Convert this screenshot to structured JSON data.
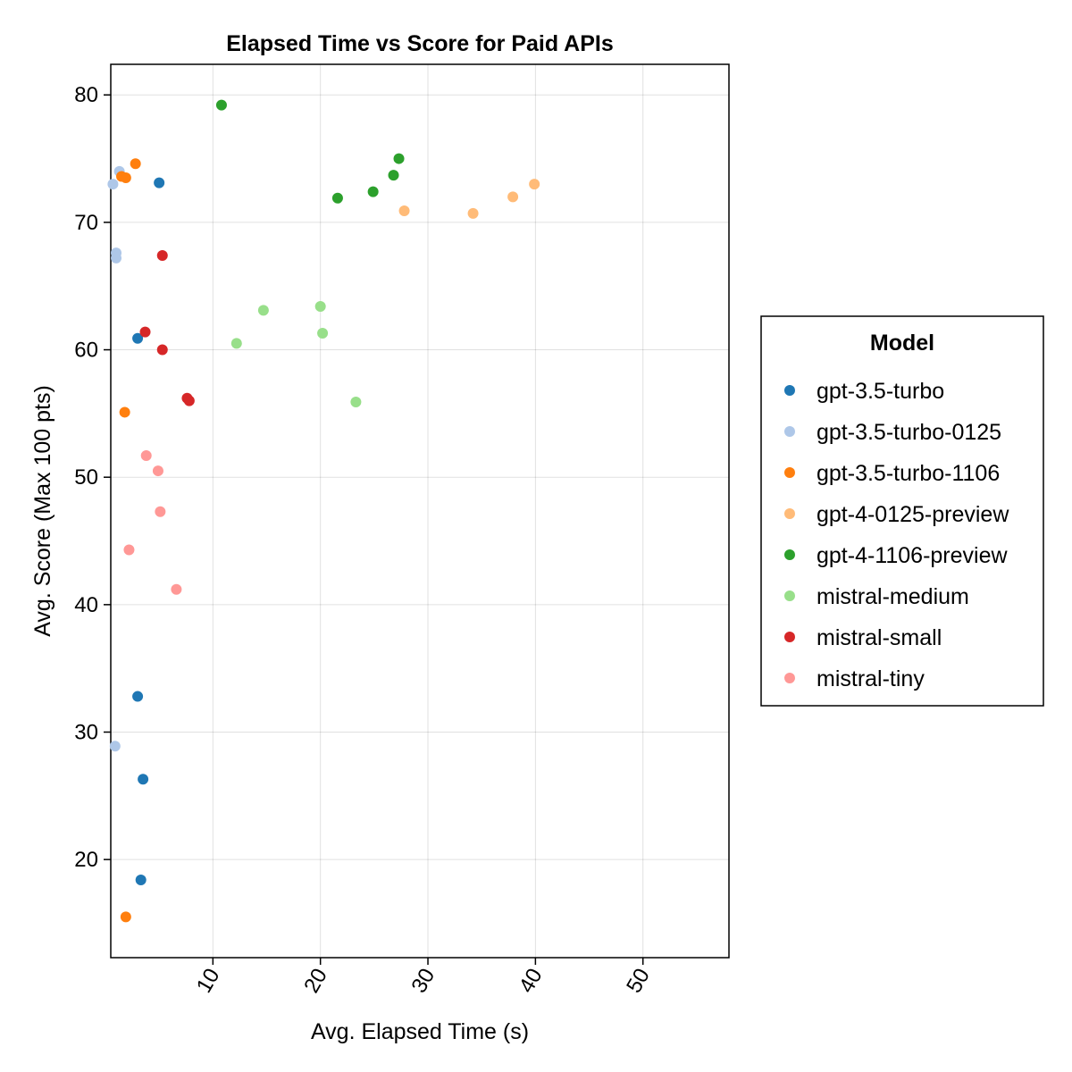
{
  "chart_data": {
    "type": "scatter",
    "title": "Elapsed Time vs Score for Paid APIs",
    "xlabel": "Avg. Elapsed Time (s)",
    "ylabel": "Avg. Score (Max 100 pts)",
    "xlim": [
      0.5,
      58
    ],
    "ylim": [
      12.3,
      82.4
    ],
    "xticks": [
      10,
      20,
      30,
      40,
      50
    ],
    "xtick_labels": [
      "10",
      "20",
      "30",
      "40",
      "50"
    ],
    "yticks": [
      20,
      30,
      40,
      50,
      60,
      70,
      80
    ],
    "ytick_labels": [
      "20",
      "30",
      "40",
      "50",
      "60",
      "70",
      "80"
    ],
    "xtick_rotation": "60deg",
    "grid": true,
    "legend": {
      "title": "Model",
      "position": "right"
    },
    "series": [
      {
        "name": "gpt-3.5-turbo",
        "color": "#1f77b4",
        "points": [
          [
            5.0,
            73.1
          ],
          [
            3.0,
            60.9
          ],
          [
            3.0,
            32.8
          ],
          [
            3.5,
            26.3
          ],
          [
            3.3,
            18.4
          ]
        ]
      },
      {
        "name": "gpt-3.5-turbo-0125",
        "color": "#aec7e8",
        "points": [
          [
            0.7,
            73.0
          ],
          [
            1.3,
            74.0
          ],
          [
            1.0,
            67.6
          ],
          [
            1.0,
            67.2
          ],
          [
            0.9,
            28.9
          ]
        ]
      },
      {
        "name": "gpt-3.5-turbo-1106",
        "color": "#ff7f0e",
        "points": [
          [
            2.8,
            74.6
          ],
          [
            1.5,
            73.6
          ],
          [
            1.9,
            73.5
          ],
          [
            1.8,
            55.1
          ],
          [
            1.9,
            15.5
          ]
        ]
      },
      {
        "name": "gpt-4-0125-preview",
        "color": "#ffbb78",
        "points": [
          [
            27.8,
            70.9
          ],
          [
            34.2,
            70.7
          ],
          [
            37.9,
            72.0
          ],
          [
            39.9,
            73.0
          ]
        ]
      },
      {
        "name": "gpt-4-1106-preview",
        "color": "#2ca02c",
        "points": [
          [
            10.8,
            79.2
          ],
          [
            21.6,
            71.9
          ],
          [
            24.9,
            72.4
          ],
          [
            26.8,
            73.7
          ],
          [
            27.3,
            75.0
          ]
        ]
      },
      {
        "name": "mistral-medium",
        "color": "#98df8a",
        "points": [
          [
            14.7,
            63.1
          ],
          [
            12.2,
            60.5
          ],
          [
            20.0,
            63.4
          ],
          [
            20.2,
            61.3
          ],
          [
            23.3,
            55.9
          ]
        ]
      },
      {
        "name": "mistral-small",
        "color": "#d62728",
        "points": [
          [
            5.3,
            67.4
          ],
          [
            3.7,
            61.4
          ],
          [
            5.3,
            60.0
          ],
          [
            7.6,
            56.2
          ],
          [
            7.8,
            56.0
          ]
        ]
      },
      {
        "name": "mistral-tiny",
        "color": "#ff9896",
        "points": [
          [
            3.8,
            51.7
          ],
          [
            4.9,
            50.5
          ],
          [
            5.1,
            47.3
          ],
          [
            2.2,
            44.3
          ],
          [
            6.6,
            41.2
          ]
        ]
      }
    ]
  }
}
